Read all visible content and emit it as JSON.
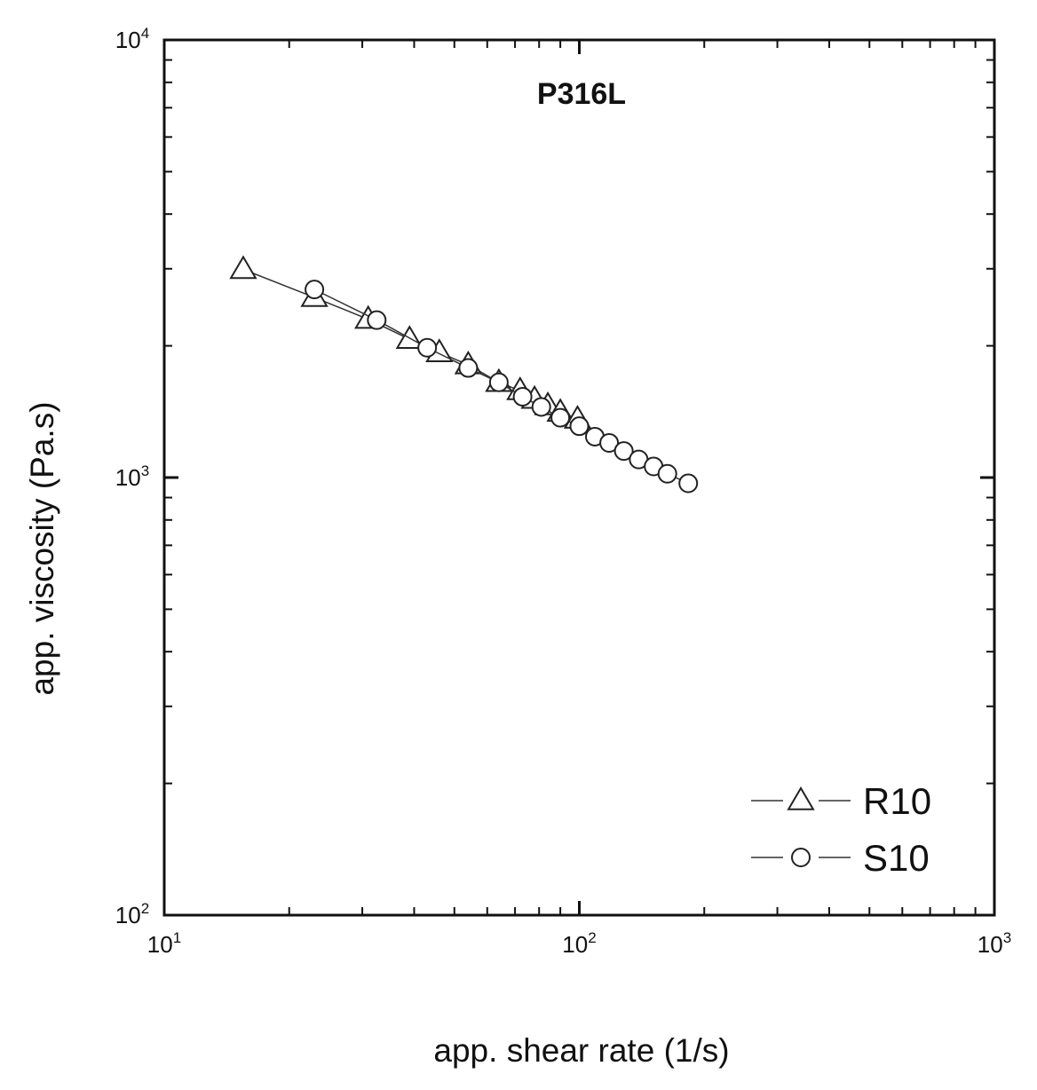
{
  "chart_data": {
    "type": "scatter",
    "title": "P316L",
    "xlabel": "app. shear rate (1/s)",
    "ylabel": "app. viscosity (Pa.s)",
    "xscale": "log",
    "yscale": "log",
    "xlim": [
      10,
      1000
    ],
    "ylim": [
      100,
      10000
    ],
    "xticks": [
      {
        "value": 10,
        "base": "10",
        "exp": "1"
      },
      {
        "value": 100,
        "base": "10",
        "exp": "2"
      },
      {
        "value": 1000,
        "base": "10",
        "exp": "3"
      }
    ],
    "yticks": [
      {
        "value": 100,
        "base": "10",
        "exp": "2"
      },
      {
        "value": 1000,
        "base": "10",
        "exp": "3"
      },
      {
        "value": 10000,
        "base": "10",
        "exp": "4"
      }
    ],
    "legend_position": "bottom-right",
    "series": [
      {
        "name": "R10",
        "marker": "triangle",
        "x": [
          15.5,
          23,
          31,
          39,
          46,
          54,
          64,
          72,
          78,
          84,
          90,
          99
        ],
        "y": [
          2990,
          2580,
          2300,
          2070,
          1930,
          1810,
          1650,
          1580,
          1510,
          1460,
          1410,
          1360
        ]
      },
      {
        "name": "S10",
        "marker": "circle",
        "x": [
          23,
          32.5,
          43,
          54,
          64,
          73,
          81,
          90,
          100,
          109,
          118,
          128,
          139,
          151,
          163,
          183
        ],
        "y": [
          2690,
          2290,
          1980,
          1780,
          1650,
          1530,
          1450,
          1370,
          1310,
          1240,
          1200,
          1150,
          1100,
          1060,
          1020,
          970
        ]
      }
    ]
  }
}
